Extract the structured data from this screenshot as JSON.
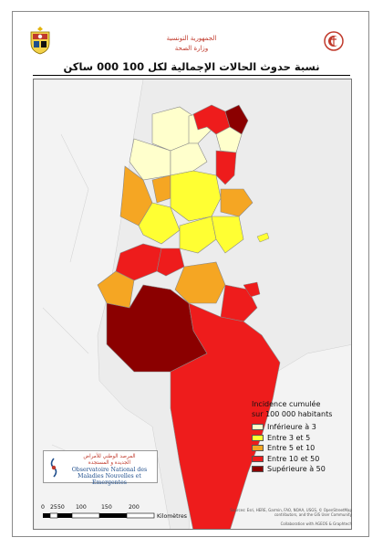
{
  "header": {
    "ministry_line1": "الجمهورية التونسية",
    "ministry_line2": "وزارة الصحة"
  },
  "title": "نسبة حدوث الحالات الإجمالية لكل 100 000 ساكن",
  "legend": {
    "title_line1": "Incidence cumulée",
    "title_line2": "sur 100 000 habitants",
    "items": [
      {
        "label": "Inférieure à 3",
        "color": "#ffffcc"
      },
      {
        "label": "Entre 3 et 5",
        "color": "#ffff33"
      },
      {
        "label": "Entre 5 et 10",
        "color": "#f5a623"
      },
      {
        "label": "Entre 10 et 50",
        "color": "#ee1c1c"
      },
      {
        "label": "Supérieure à 50",
        "color": "#8b0000"
      }
    ]
  },
  "observatory": {
    "arabic_line1": "المرصد الوطني للأمراض",
    "arabic_line2": "الجديدة و المستجدة",
    "french_line1": "Observatoire National des",
    "french_line2": "Maladies Nouvelles et Emergentes"
  },
  "scale": {
    "ticks": [
      "0",
      "25",
      "50",
      "100",
      "150",
      "200"
    ],
    "unit": "Kilomètres"
  },
  "sources": {
    "line1": "Sources: Esri, HERE, Garmin, FAO, NOAA, USGS, © OpenStreetMap",
    "line2": "contributors, and the GIS User Community",
    "collab": "Collaboration with AGEOS & Graphtech"
  },
  "colors": {
    "land": "#ffffff",
    "sea": "#ececec",
    "brand_red": "#c0392b"
  }
}
